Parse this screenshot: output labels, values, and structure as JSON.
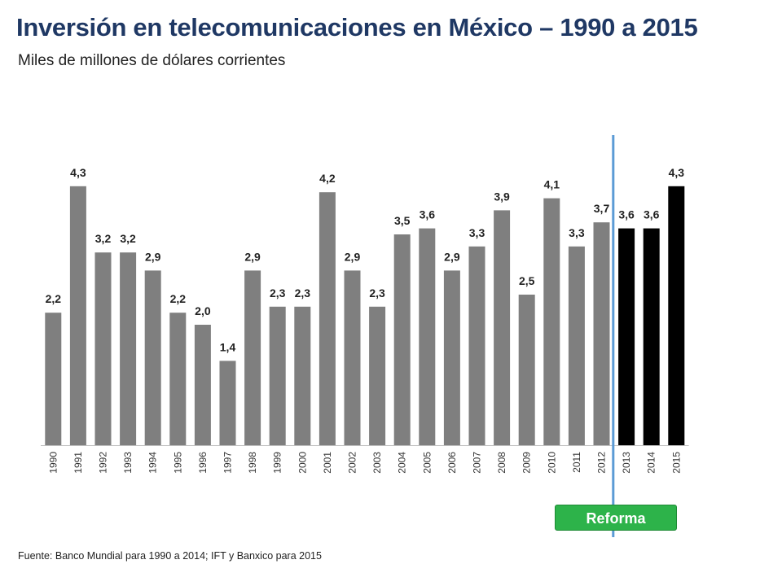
{
  "title": "Inversión en telecomunicaciones en México – 1990 a 2015",
  "subtitle": "Miles de millones de dólares corrientes",
  "reform_label": "Reforma",
  "source": "Fuente: Banco Mundial para 1990 a 2014; IFT y Banxico para 2015",
  "colors": {
    "bar_historic": "#7f7f7f",
    "bar_post_reform": "#000000",
    "reform_line": "#5b9bd5",
    "reform_badge": "#2db34a",
    "title": "#1f3864"
  },
  "chart_data": {
    "type": "bar",
    "title": "Inversión en telecomunicaciones en México – 1990 a 2015",
    "subtitle": "Miles de millones de dólares corrientes",
    "xlabel": "",
    "ylabel": "",
    "categories": [
      "1990",
      "1991",
      "1992",
      "1993",
      "1994",
      "1995",
      "1996",
      "1997",
      "1998",
      "1999",
      "2000",
      "2001",
      "2002",
      "2003",
      "2004",
      "2005",
      "2006",
      "2007",
      "2008",
      "2009",
      "2010",
      "2011",
      "2012",
      "2013",
      "2014",
      "2015"
    ],
    "values": [
      2.2,
      4.3,
      3.2,
      3.2,
      2.9,
      2.2,
      2.0,
      1.4,
      2.9,
      2.3,
      2.3,
      4.2,
      2.9,
      2.3,
      3.5,
      3.6,
      2.9,
      3.3,
      3.9,
      2.5,
      4.1,
      3.3,
      3.7,
      3.6,
      3.6,
      4.3
    ],
    "value_labels": [
      "2,2",
      "4,3",
      "3,2",
      "3,2",
      "2,9",
      "2,2",
      "2,0",
      "1,4",
      "2,9",
      "2,3",
      "2,3",
      "4,2",
      "2,9",
      "2,3",
      "3,5",
      "3,6",
      "2,9",
      "3,3",
      "3,9",
      "2,5",
      "4,1",
      "3,3",
      "3,7",
      "3,6",
      "3,6",
      "4,3"
    ],
    "highlight_from": "2013",
    "reform_marker_between": [
      "2012",
      "2013"
    ],
    "ylim": [
      0,
      4.5
    ],
    "grid": false,
    "legend": "none"
  }
}
